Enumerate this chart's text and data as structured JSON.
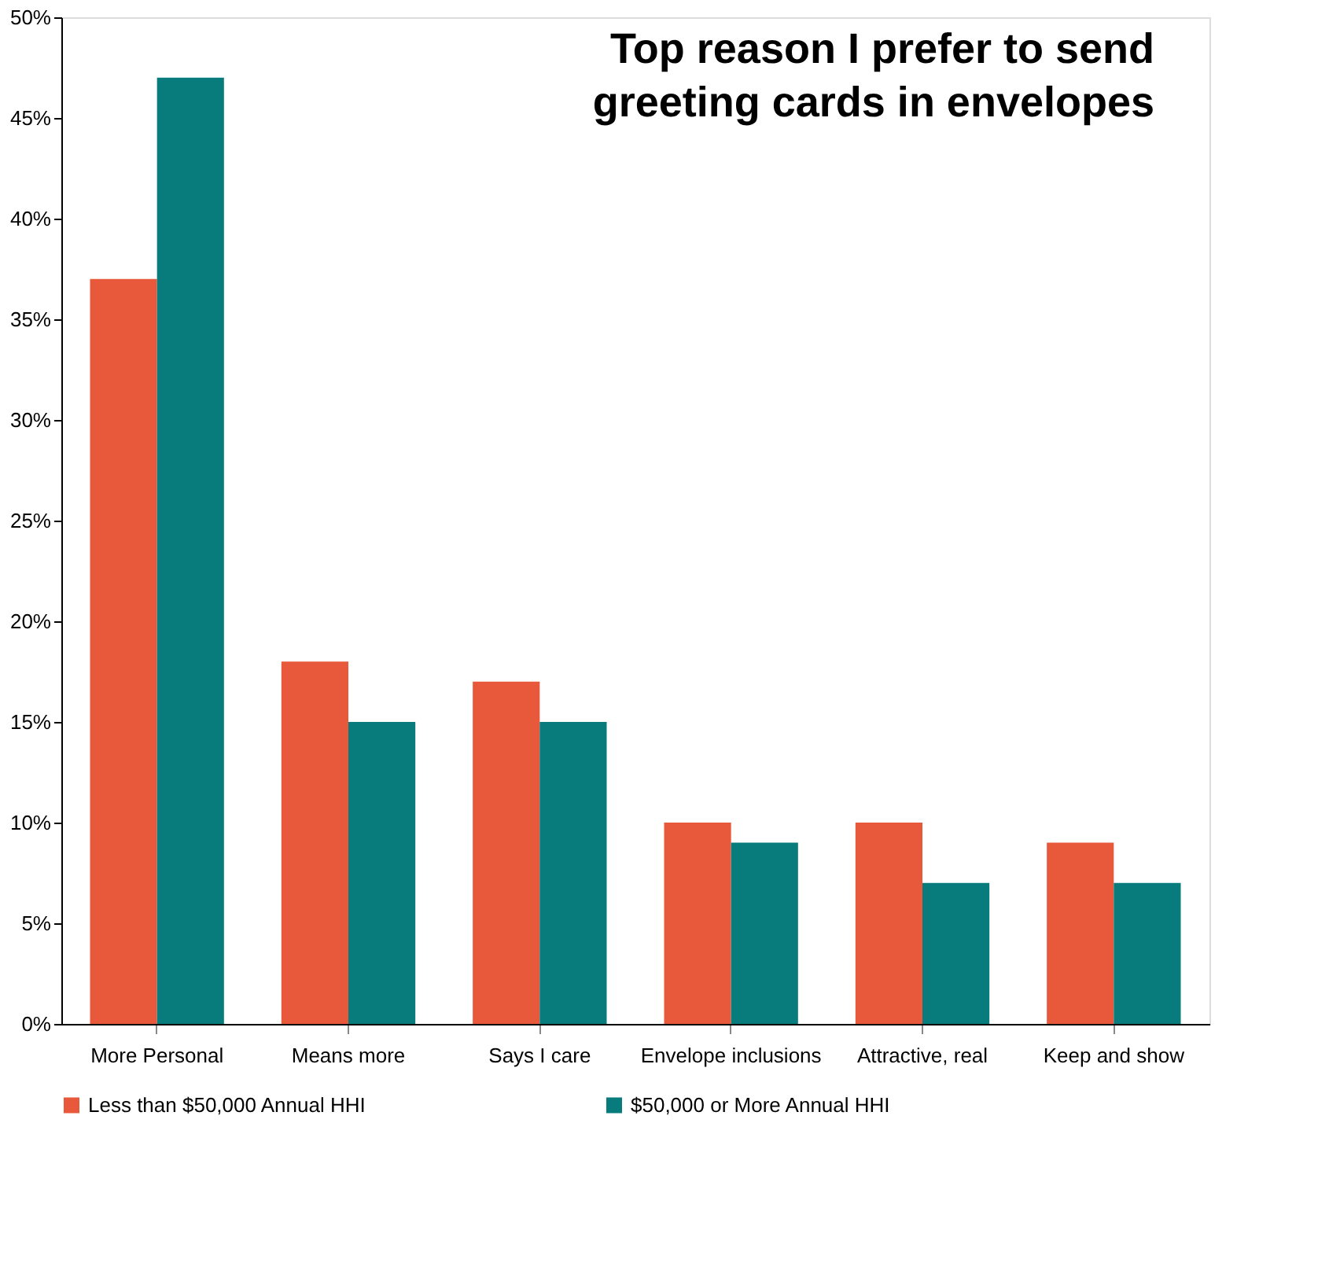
{
  "chart_data": {
    "type": "bar",
    "title": "Top reason I prefer to send greeting cards in envelopes",
    "categories": [
      "More Personal",
      "Means more",
      "Says I care",
      "Envelope inclusions",
      "Attractive, real",
      "Keep and show"
    ],
    "series": [
      {
        "name": "Less than $50,000 Annual HHI",
        "color": "#e8583a",
        "values": [
          37,
          18,
          17,
          10,
          10,
          9
        ]
      },
      {
        "name": "$50,000 or More Annual HHI",
        "color": "#087c7c",
        "values": [
          47,
          15,
          15,
          9,
          7,
          7
        ]
      }
    ],
    "ylim": [
      0,
      50
    ],
    "yticks": [
      {
        "value": 0,
        "label": "0%"
      },
      {
        "value": 5,
        "label": "5%"
      },
      {
        "value": 10,
        "label": "10%"
      },
      {
        "value": 15,
        "label": "15%"
      },
      {
        "value": 20,
        "label": "20%"
      },
      {
        "value": 25,
        "label": "25%"
      },
      {
        "value": 30,
        "label": "30%"
      },
      {
        "value": 35,
        "label": "35%"
      },
      {
        "value": 40,
        "label": "40%"
      },
      {
        "value": 45,
        "label": "45%"
      },
      {
        "value": 50,
        "label": "50%"
      }
    ],
    "grid": false,
    "legend": "bottom"
  }
}
